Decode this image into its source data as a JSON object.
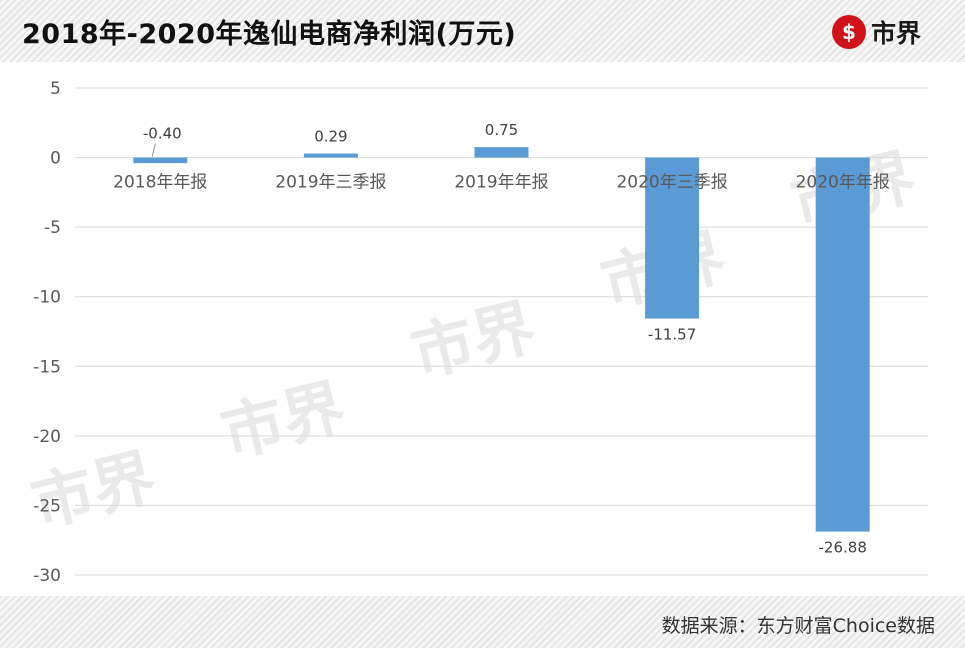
{
  "header": {
    "title": "2018年-2020年逸仙电商净利润(万元)",
    "logo_text": "市界"
  },
  "footer": {
    "source": "数据来源：东方财富Choice数据"
  },
  "watermark_text": "市界",
  "colors": {
    "bar": "#5b9bd5",
    "grid": "#d9d9d9",
    "axis_text": "#595959",
    "logo_red": "#d0121b"
  },
  "chart_data": {
    "type": "bar",
    "title": "2018年-2020年逸仙电商净利润(万元)",
    "xlabel": "",
    "ylabel": "",
    "categories": [
      "2018年年报",
      "2019年三季报",
      "2019年年报",
      "2020年三季报",
      "2020年年报"
    ],
    "values": [
      -0.4,
      0.29,
      0.75,
      -11.57,
      -26.88
    ],
    "value_labels": [
      "-0.40",
      "0.29",
      "0.75",
      "-11.57",
      "-26.88"
    ],
    "ylim": [
      -30,
      5
    ],
    "yticks": [
      5,
      0,
      -5,
      -10,
      -15,
      -20,
      -25,
      -30
    ],
    "grid": true,
    "legend": "none"
  }
}
